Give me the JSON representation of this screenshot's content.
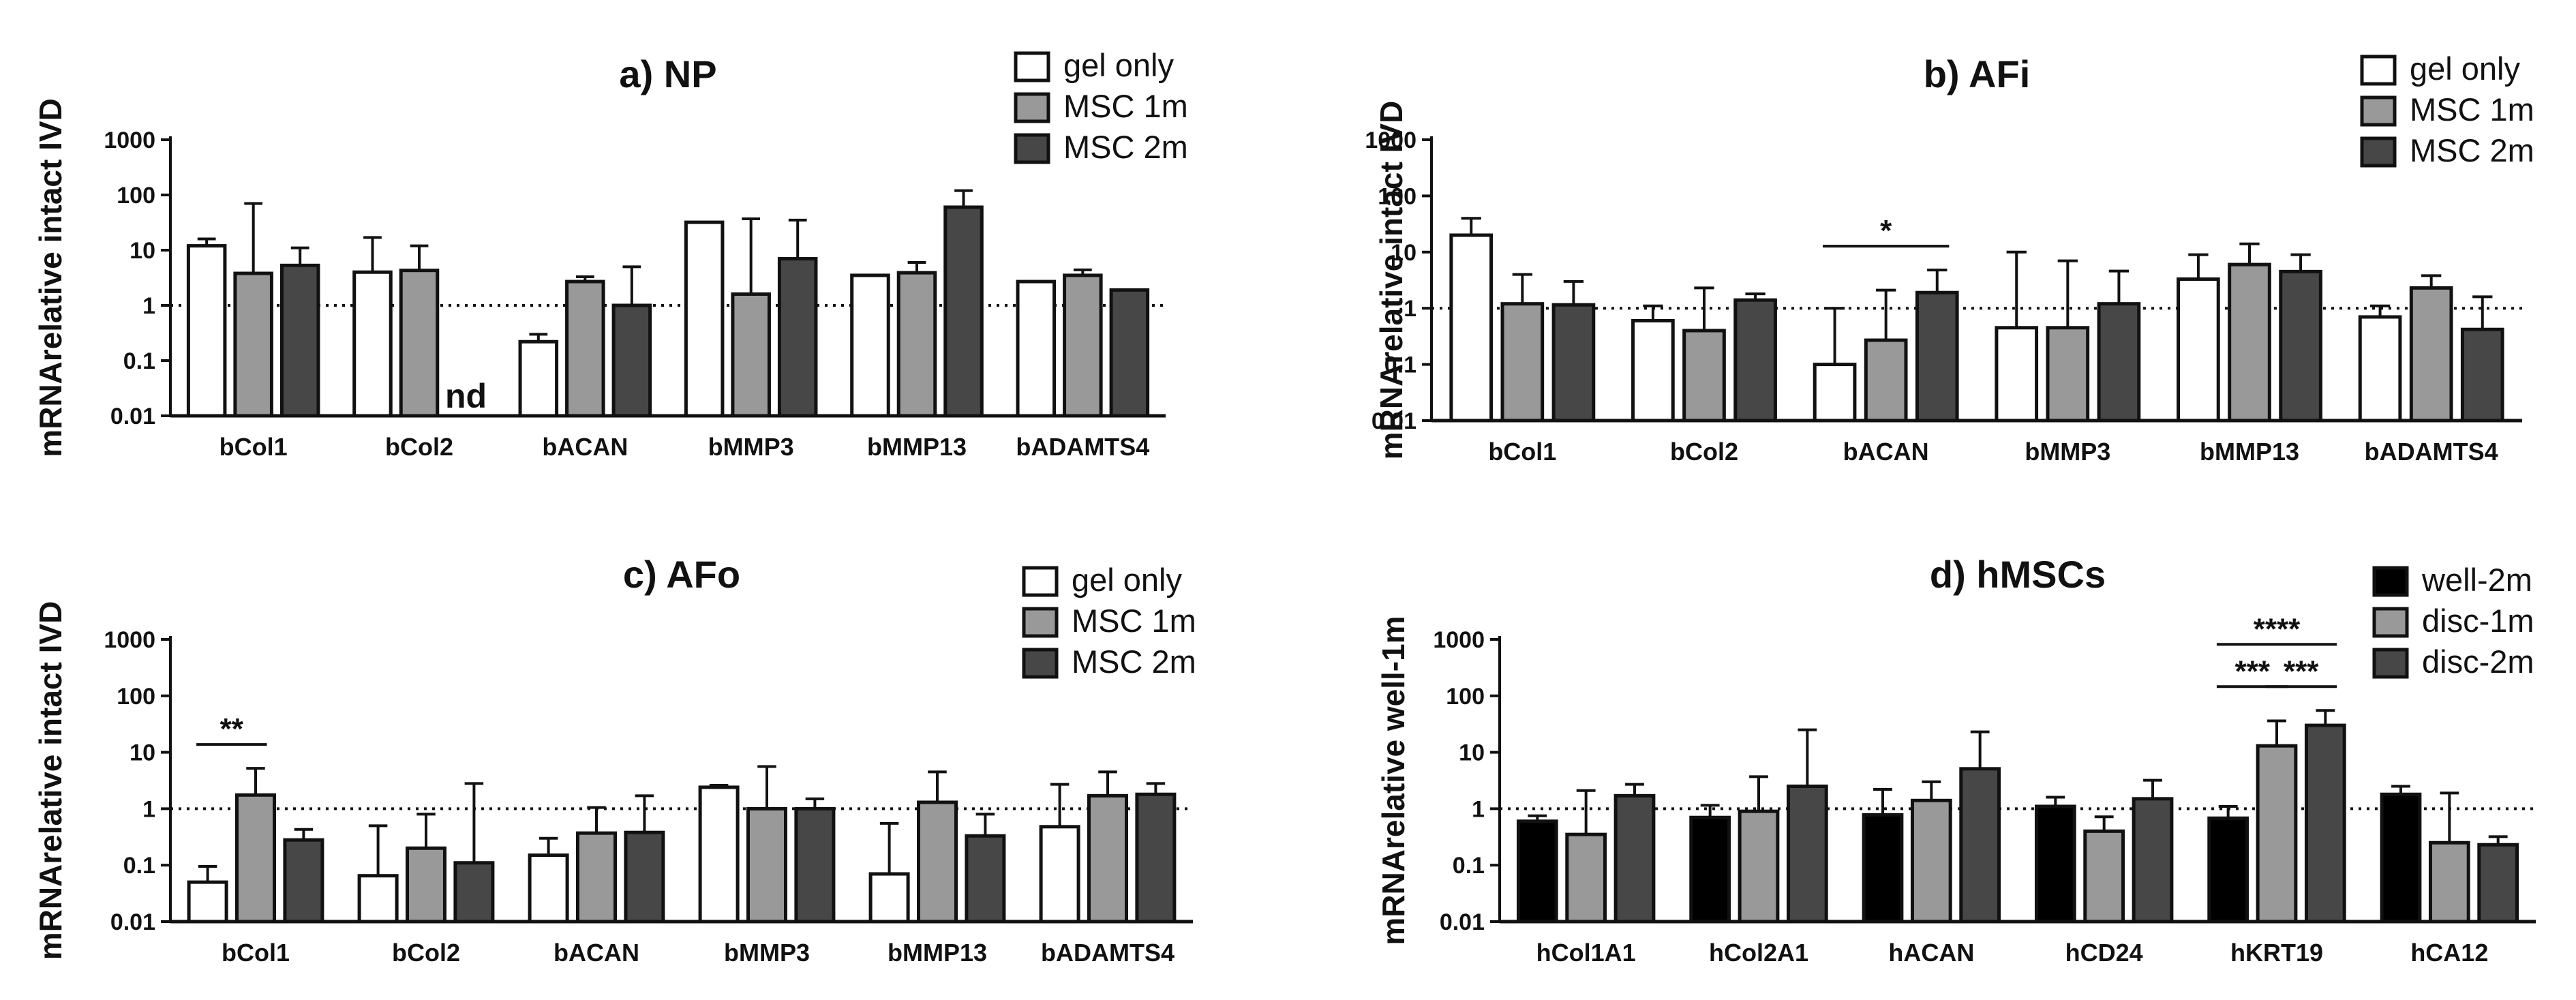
{
  "chart_data": [
    {
      "type": "bar",
      "title": "a) NP",
      "ylabel": "mRNArelative intact IVD",
      "yscale": "log",
      "ylim": [
        0.01,
        1000
      ],
      "yticks": [
        "0.01",
        "0.1",
        "1",
        "10",
        "100",
        "1000"
      ],
      "reference_line": 1,
      "categories": [
        "bCol1",
        "bCol2",
        "bACAN",
        "bMMP3",
        "bMMP13",
        "bADAMTS4"
      ],
      "series": [
        {
          "name": "gel only",
          "color": "#ffffff",
          "values": [
            12,
            4,
            0.22,
            32,
            3.5,
            2.7
          ],
          "errors": [
            16,
            17,
            0.3,
            32,
            3.5,
            2.7
          ]
        },
        {
          "name": "MSC 1m",
          "color": "#999999",
          "values": [
            3.8,
            4.3,
            2.7,
            1.6,
            3.9,
            3.5
          ],
          "errors": [
            70,
            12,
            3.3,
            37,
            6,
            4.4
          ]
        },
        {
          "name": "MSC 2m",
          "color": "#474747",
          "values": [
            5.3,
            null,
            1.0,
            7,
            60,
            1.9
          ],
          "errors": [
            11,
            null,
            5,
            35,
            120,
            1.9
          ]
        }
      ],
      "annotations": [
        {
          "text": "nd",
          "category": "bCol2",
          "series": "MSC 2m"
        }
      ],
      "significance": []
    },
    {
      "type": "bar",
      "title": "b) AFi",
      "ylabel": "mRNArelative intact IVD",
      "yscale": "log",
      "ylim": [
        0.01,
        1000
      ],
      "yticks": [
        "0.01",
        "0.1",
        "1",
        "10",
        "100",
        "1000"
      ],
      "reference_line": 1,
      "categories": [
        "bCol1",
        "bCol2",
        "bACAN",
        "bMMP3",
        "bMMP13",
        "bADAMTS4"
      ],
      "series": [
        {
          "name": "gel only",
          "color": "#ffffff",
          "values": [
            20,
            0.6,
            0.1,
            0.45,
            3.3,
            0.7
          ],
          "errors": [
            40,
            1.1,
            1.0,
            10,
            9,
            1.1
          ]
        },
        {
          "name": "MSC 1m",
          "color": "#999999",
          "values": [
            1.2,
            0.4,
            0.27,
            0.45,
            6,
            2.3
          ],
          "errors": [
            4,
            2.3,
            2.1,
            7,
            14,
            3.8
          ]
        },
        {
          "name": "MSC 2m",
          "color": "#474747",
          "values": [
            1.15,
            1.4,
            1.9,
            1.2,
            4.5,
            0.42
          ],
          "errors": [
            3,
            1.8,
            4.8,
            4.6,
            9,
            1.6
          ]
        }
      ],
      "annotations": [],
      "significance": [
        {
          "text": "*",
          "from": {
            "category": "bACAN",
            "series": "gel only"
          },
          "to": {
            "category": "bACAN",
            "series": "MSC 2m"
          },
          "level": 0
        }
      ]
    },
    {
      "type": "bar",
      "title": "c) AFo",
      "ylabel": "mRNArelative intact IVD",
      "yscale": "log",
      "ylim": [
        0.01,
        1000
      ],
      "yticks": [
        "0.01",
        "0.1",
        "1",
        "10",
        "100",
        "1000"
      ],
      "reference_line": 1,
      "categories": [
        "bCol1",
        "bCol2",
        "bACAN",
        "bMMP3",
        "bMMP13",
        "bADAMTS4"
      ],
      "series": [
        {
          "name": "gel only",
          "color": "#ffffff",
          "values": [
            0.05,
            0.065,
            0.15,
            2.4,
            0.07,
            0.48
          ],
          "errors": [
            0.095,
            0.5,
            0.3,
            2.6,
            0.55,
            2.7
          ]
        },
        {
          "name": "MSC 1m",
          "color": "#999999",
          "values": [
            1.75,
            0.2,
            0.37,
            1.0,
            1.3,
            1.7
          ],
          "errors": [
            5.2,
            0.8,
            1.05,
            5.6,
            4.5,
            4.5
          ]
        },
        {
          "name": "MSC 2m",
          "color": "#474747",
          "values": [
            0.28,
            0.11,
            0.38,
            1.0,
            0.33,
            1.8
          ],
          "errors": [
            0.43,
            2.8,
            1.7,
            1.5,
            0.8,
            2.8
          ]
        }
      ],
      "annotations": [],
      "significance": [
        {
          "text": "**",
          "from": {
            "category": "bCol1",
            "series": "gel only"
          },
          "to": {
            "category": "bCol1",
            "series": "MSC 1m"
          },
          "level": 0
        }
      ]
    },
    {
      "type": "bar",
      "title": "d) hMSCs",
      "ylabel": "mRNArelative well-1m",
      "yscale": "log",
      "ylim": [
        0.01,
        1000
      ],
      "yticks": [
        "0.01",
        "0.1",
        "1",
        "10",
        "100",
        "1000"
      ],
      "reference_line": 1,
      "categories": [
        "hCol1A1",
        "hCol2A1",
        "hACAN",
        "hCD24",
        "hKRT19",
        "hCA12"
      ],
      "series": [
        {
          "name": "well-2m",
          "color": "#000000",
          "values": [
            0.6,
            0.7,
            0.78,
            1.1,
            0.68,
            1.8
          ],
          "errors": [
            0.75,
            1.15,
            2.2,
            1.6,
            1.1,
            2.5
          ]
        },
        {
          "name": "disc-1m",
          "color": "#999999",
          "values": [
            0.35,
            0.9,
            1.4,
            0.4,
            13,
            0.25
          ],
          "errors": [
            2.1,
            3.7,
            3.0,
            0.72,
            36,
            1.9
          ]
        },
        {
          "name": "disc-2m",
          "color": "#474747",
          "values": [
            1.7,
            2.5,
            5.1,
            1.5,
            30,
            0.23
          ],
          "errors": [
            2.7,
            25,
            23,
            3.2,
            55,
            0.32
          ]
        }
      ],
      "annotations": [],
      "significance": [
        {
          "text": "***",
          "from": {
            "category": "hKRT19",
            "series": "well-2m"
          },
          "to": {
            "category": "hKRT19",
            "series": "disc-1m"
          },
          "level": 0
        },
        {
          "text": "***",
          "from": {
            "category": "hKRT19",
            "series": "disc-1m"
          },
          "to": {
            "category": "hKRT19",
            "series": "disc-2m"
          },
          "level": 0
        },
        {
          "text": "****",
          "from": {
            "category": "hKRT19",
            "series": "well-2m"
          },
          "to": {
            "category": "hKRT19",
            "series": "disc-2m"
          },
          "level": 1
        }
      ]
    }
  ]
}
